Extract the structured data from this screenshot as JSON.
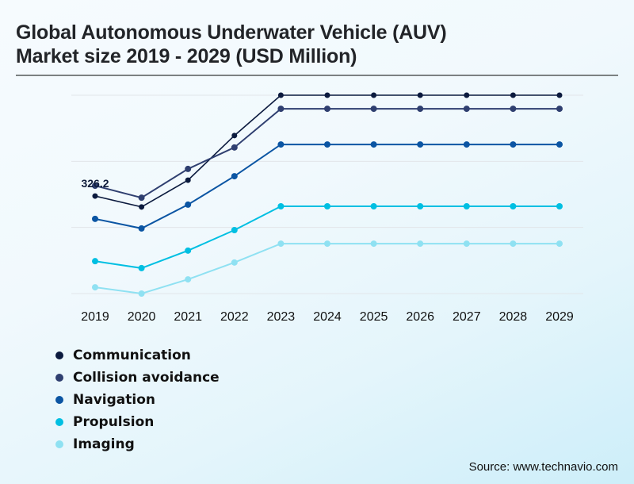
{
  "chart_data": {
    "type": "line",
    "title": "Global Autonomous Underwater Vehicle (AUV) Market size 2019 - 2029 (USD Million)",
    "title_lines": [
      "Global Autonomous Underwater Vehicle (AUV)",
      "Market size 2019 - 2029 (USD Million)"
    ],
    "xlabel": "",
    "ylabel": "",
    "x": [
      "2019",
      "2020",
      "2021",
      "2022",
      "2023",
      "2024",
      "2025",
      "2026",
      "2027",
      "2028",
      "2029"
    ],
    "ylim": [
      0,
      600
    ],
    "yticks": [
      0,
      200,
      400,
      600
    ],
    "ytick_labels_visible": false,
    "grid": true,
    "legend_position": "bottom-left",
    "series": [
      {
        "name": "Communication",
        "color": "#0b1a3e",
        "values": [
          295,
          262,
          343,
          478,
          600,
          600,
          600,
          600,
          600,
          600,
          600
        ]
      },
      {
        "name": "Collision avoidance",
        "color": "#2f3f70",
        "values": [
          326.2,
          290,
          377,
          442,
          559,
          559,
          559,
          559,
          559,
          559,
          559
        ]
      },
      {
        "name": "Navigation",
        "color": "#0b55a3",
        "values": [
          226,
          197,
          269,
          355,
          451,
          451,
          451,
          451,
          451,
          451,
          451
        ]
      },
      {
        "name": "Propulsion",
        "color": "#00bfe2",
        "values": [
          98,
          77,
          130,
          192,
          264,
          264,
          264,
          264,
          264,
          264,
          264
        ]
      },
      {
        "name": "Imaging",
        "color": "#8fe1f2",
        "values": [
          19,
          0,
          43,
          94,
          151,
          151,
          151,
          151,
          151,
          151,
          151
        ]
      }
    ],
    "annotations": [
      {
        "text": "326.2",
        "series": "Collision avoidance",
        "x": "2019"
      }
    ]
  },
  "source": "Source: www.technavio.com"
}
